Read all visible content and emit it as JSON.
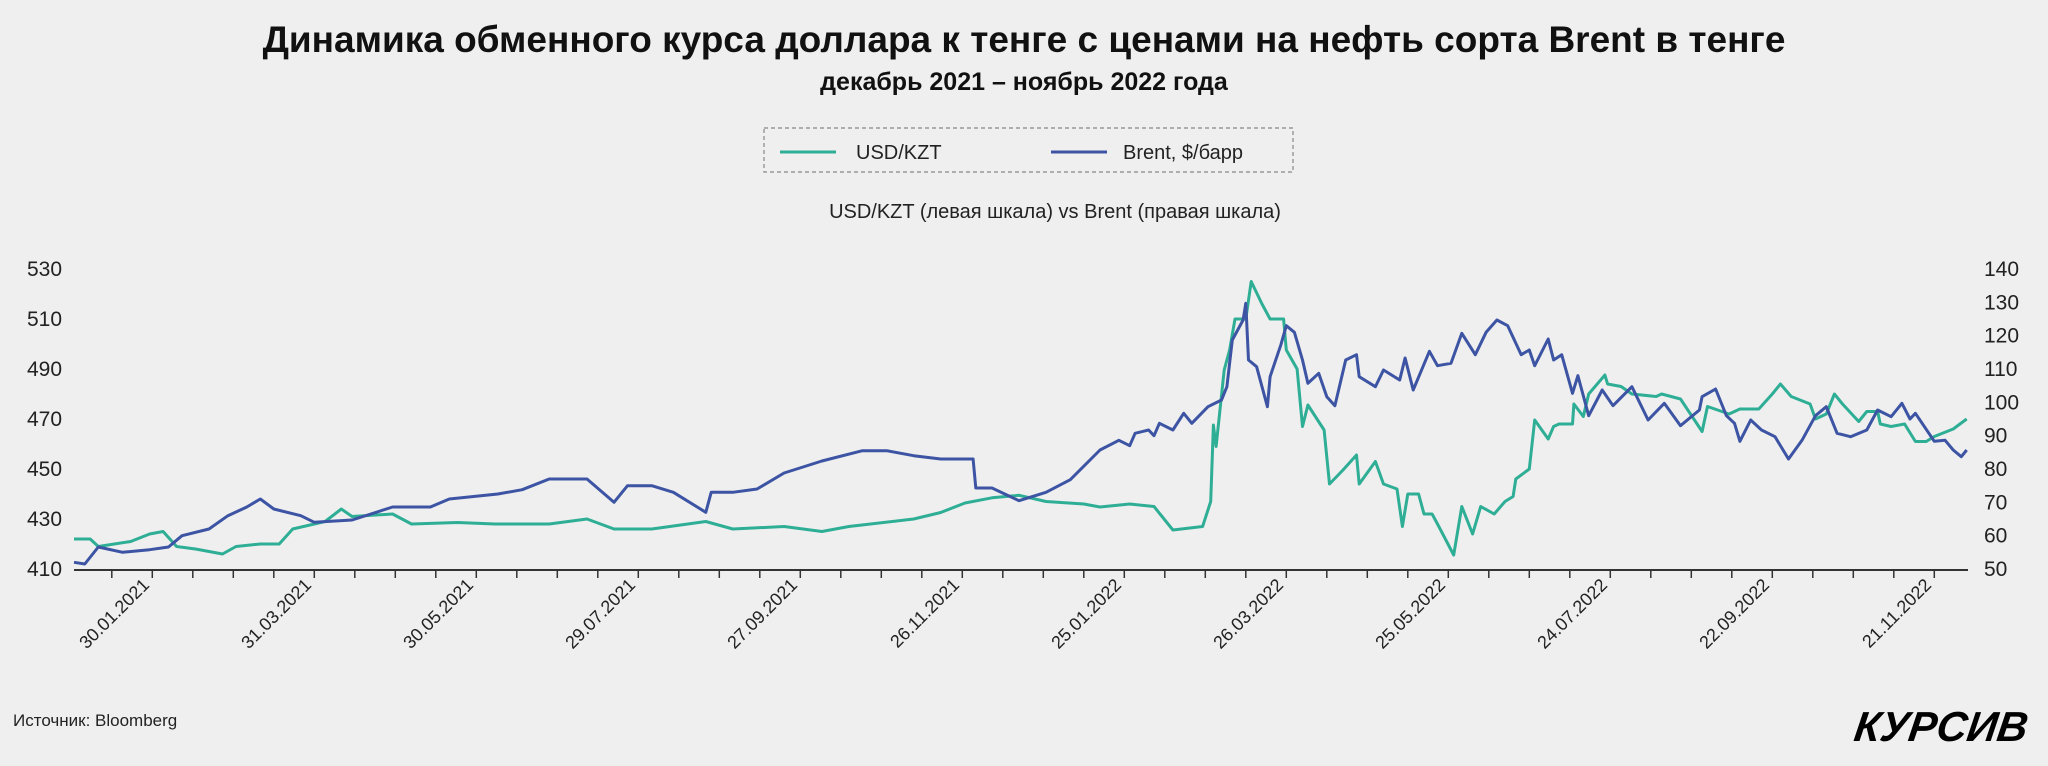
{
  "title": "Динамика обменного курса доллара к тенге с ценами на нефть сорта Brent в тенге",
  "subtitle": "декабрь 2021 – ноябрь 2022 года",
  "source": "Источник: Bloomberg",
  "logo": "КУРСИВ",
  "colors": {
    "usd": "#2fae96",
    "brent": "#3c54a3",
    "background": "#efefef"
  },
  "chart_data": {
    "type": "line",
    "caption": "USD/KZT (левая шкала) vs Brent (правая шкала)",
    "legend": [
      "USD/KZT",
      "Brent, $/барр"
    ],
    "legend_placement": "top-center",
    "x_origin": "2021-01-01",
    "x_unit": "days",
    "x_ticks": [
      {
        "day": 29,
        "label": "30.01.2021"
      },
      {
        "day": 89,
        "label": "31.03.2021"
      },
      {
        "day": 149,
        "label": "30.05.2021"
      },
      {
        "day": 209,
        "label": "29.07.2021"
      },
      {
        "day": 269,
        "label": "27.09.2021"
      },
      {
        "day": 329,
        "label": "26.11.2021"
      },
      {
        "day": 389,
        "label": "25.01.2022"
      },
      {
        "day": 449,
        "label": "26.03.2022"
      },
      {
        "day": 509,
        "label": "25.05.2022"
      },
      {
        "day": 569,
        "label": "24.07.2022"
      },
      {
        "day": 629,
        "label": "22.09.2022"
      },
      {
        "day": 689,
        "label": "21.11.2022"
      }
    ],
    "xlim": [
      0,
      701
    ],
    "y_left": {
      "label": "USD/KZT",
      "ylim": [
        410,
        530
      ],
      "ticks": [
        "530",
        "510",
        "490",
        "470",
        "450",
        "430",
        "410"
      ]
    },
    "y_right": {
      "label": "Brent, $/барр",
      "ylim": [
        50,
        140
      ],
      "ticks": [
        "140",
        "130",
        "120",
        "110",
        "100",
        "90",
        "80",
        "70",
        "60",
        "50"
      ]
    },
    "grid": false,
    "series": [
      {
        "name": "USD/KZT",
        "axis": "left",
        "points": [
          [
            0,
            422
          ],
          [
            6,
            422
          ],
          [
            9,
            419
          ],
          [
            21,
            421
          ],
          [
            28,
            424
          ],
          [
            33,
            425
          ],
          [
            38,
            419
          ],
          [
            45,
            418
          ],
          [
            55,
            416
          ],
          [
            60,
            419
          ],
          [
            69,
            420
          ],
          [
            76,
            420
          ],
          [
            81,
            426
          ],
          [
            93,
            429
          ],
          [
            99,
            434
          ],
          [
            103,
            431
          ],
          [
            118,
            432
          ],
          [
            125,
            428
          ],
          [
            142,
            428.6
          ],
          [
            156,
            428
          ],
          [
            176,
            428
          ],
          [
            190,
            430
          ],
          [
            200,
            426
          ],
          [
            214,
            426
          ],
          [
            234,
            429
          ],
          [
            244,
            426
          ],
          [
            263,
            427
          ],
          [
            277,
            425
          ],
          [
            287,
            427
          ],
          [
            311,
            430
          ],
          [
            321,
            432.6
          ],
          [
            330,
            436.4
          ],
          [
            340,
            438.5
          ],
          [
            350,
            439.5
          ],
          [
            360,
            437
          ],
          [
            374,
            436
          ],
          [
            380,
            434.8
          ],
          [
            391,
            436
          ],
          [
            400,
            435
          ],
          [
            407,
            425.6
          ],
          [
            418,
            427
          ],
          [
            421,
            437
          ],
          [
            422,
            467.6
          ],
          [
            423,
            459
          ],
          [
            426,
            489.6
          ],
          [
            428,
            497.6
          ],
          [
            430,
            510
          ],
          [
            434,
            510
          ],
          [
            436,
            525
          ],
          [
            440,
            516
          ],
          [
            443,
            510
          ],
          [
            448,
            510
          ],
          [
            449,
            497.6
          ],
          [
            453,
            490
          ],
          [
            455,
            467
          ],
          [
            457,
            475.6
          ],
          [
            463,
            465.6
          ],
          [
            465,
            444
          ],
          [
            470,
            449.6
          ],
          [
            475,
            455.6
          ],
          [
            476,
            444
          ],
          [
            482,
            453
          ],
          [
            485,
            444
          ],
          [
            490,
            442
          ],
          [
            492,
            427
          ],
          [
            494,
            440
          ],
          [
            498,
            440
          ],
          [
            500,
            432
          ],
          [
            503,
            432
          ],
          [
            505,
            428
          ],
          [
            511,
            415.6
          ],
          [
            514,
            435
          ],
          [
            518,
            424
          ],
          [
            521,
            435
          ],
          [
            526,
            432
          ],
          [
            530,
            437
          ],
          [
            533,
            439
          ],
          [
            534,
            446
          ],
          [
            539,
            450
          ],
          [
            541,
            469.6
          ],
          [
            546,
            462
          ],
          [
            548,
            467
          ],
          [
            550,
            468
          ],
          [
            555,
            468
          ],
          [
            555.5,
            476
          ],
          [
            559,
            471
          ],
          [
            561,
            480
          ],
          [
            567,
            487.6
          ],
          [
            568,
            484
          ],
          [
            573,
            483
          ],
          [
            577,
            480
          ],
          [
            586,
            479
          ],
          [
            588,
            480
          ],
          [
            595,
            478
          ],
          [
            603,
            465
          ],
          [
            605,
            475
          ],
          [
            613,
            472
          ],
          [
            617,
            474
          ],
          [
            624,
            474
          ],
          [
            629,
            480
          ],
          [
            632,
            484
          ],
          [
            636,
            479
          ],
          [
            643,
            476
          ],
          [
            645,
            470
          ],
          [
            649,
            472
          ],
          [
            652,
            480
          ],
          [
            655,
            476
          ],
          [
            661,
            469
          ],
          [
            664,
            473
          ],
          [
            668,
            473
          ],
          [
            669,
            468
          ],
          [
            673,
            467
          ],
          [
            678,
            468
          ],
          [
            682,
            461
          ],
          [
            686,
            461
          ],
          [
            689,
            463
          ],
          [
            696,
            466
          ],
          [
            701,
            470
          ]
        ]
      },
      {
        "name": "Brent, $/барр",
        "axis": "right",
        "points": [
          [
            0,
            52
          ],
          [
            4,
            51.5
          ],
          [
            9,
            56.6
          ],
          [
            18,
            55
          ],
          [
            28,
            55.8
          ],
          [
            35,
            56.6
          ],
          [
            40,
            60
          ],
          [
            50,
            62
          ],
          [
            57,
            66
          ],
          [
            64,
            68.6
          ],
          [
            69,
            71
          ],
          [
            74,
            68
          ],
          [
            84,
            66
          ],
          [
            89,
            64
          ],
          [
            103,
            64.7
          ],
          [
            118,
            68.6
          ],
          [
            132,
            68.6
          ],
          [
            139,
            71
          ],
          [
            157,
            72.5
          ],
          [
            166,
            73.8
          ],
          [
            176,
            77
          ],
          [
            190,
            77
          ],
          [
            200,
            70
          ],
          [
            205,
            75
          ],
          [
            214,
            75
          ],
          [
            222,
            73
          ],
          [
            234,
            67
          ],
          [
            236,
            73
          ],
          [
            244,
            73
          ],
          [
            253,
            74
          ],
          [
            263,
            78.8
          ],
          [
            277,
            82.4
          ],
          [
            292,
            85.5
          ],
          [
            301,
            85.5
          ],
          [
            311,
            84
          ],
          [
            321,
            83
          ],
          [
            333,
            83
          ],
          [
            334,
            74.3
          ],
          [
            340,
            74.3
          ],
          [
            350,
            70.5
          ],
          [
            360,
            73
          ],
          [
            369,
            76.8
          ],
          [
            380,
            85.7
          ],
          [
            387,
            88.6
          ],
          [
            391,
            87
          ],
          [
            393,
            90.7
          ],
          [
            398,
            91.7
          ],
          [
            400,
            90
          ],
          [
            402,
            93.7
          ],
          [
            407,
            91.7
          ],
          [
            411,
            96.7
          ],
          [
            414,
            93.7
          ],
          [
            420,
            98.7
          ],
          [
            425,
            100.7
          ],
          [
            427,
            104.7
          ],
          [
            429,
            118.7
          ],
          [
            433,
            124.7
          ],
          [
            434,
            129.7
          ],
          [
            435,
            112.7
          ],
          [
            438,
            110.7
          ],
          [
            442,
            98.7
          ],
          [
            443,
            107.7
          ],
          [
            447,
            117.3
          ],
          [
            449,
            123
          ],
          [
            452,
            121
          ],
          [
            455,
            112.7
          ],
          [
            457,
            105.7
          ],
          [
            461,
            108.7
          ],
          [
            464,
            101.7
          ],
          [
            467,
            99
          ],
          [
            471,
            112.7
          ],
          [
            475,
            114.3
          ],
          [
            476,
            107.7
          ],
          [
            482,
            104.7
          ],
          [
            485,
            109.7
          ],
          [
            491,
            106.7
          ],
          [
            493,
            113.3
          ],
          [
            496,
            103.7
          ],
          [
            502,
            115.3
          ],
          [
            505,
            111
          ],
          [
            510,
            111.7
          ],
          [
            514,
            120.7
          ],
          [
            519,
            114.3
          ],
          [
            523,
            121
          ],
          [
            527,
            124.7
          ],
          [
            531,
            123
          ],
          [
            536,
            114.3
          ],
          [
            539,
            115.7
          ],
          [
            541,
            111
          ],
          [
            546,
            119
          ],
          [
            548,
            112.7
          ],
          [
            551,
            114.3
          ],
          [
            555,
            102.7
          ],
          [
            557,
            108
          ],
          [
            561,
            96
          ],
          [
            566,
            103.7
          ],
          [
            570,
            99
          ],
          [
            577,
            104.7
          ],
          [
            583,
            94.7
          ],
          [
            589,
            99.7
          ],
          [
            595,
            93
          ],
          [
            602,
            97.7
          ],
          [
            603,
            101.7
          ],
          [
            608,
            104
          ],
          [
            612,
            96
          ],
          [
            615,
            93.7
          ],
          [
            617,
            88.3
          ],
          [
            621,
            94.7
          ],
          [
            625,
            91.7
          ],
          [
            630,
            89.7
          ],
          [
            635,
            83
          ],
          [
            640,
            88.6
          ],
          [
            645,
            96
          ],
          [
            649,
            98.7
          ],
          [
            653,
            90.7
          ],
          [
            658,
            89.7
          ],
          [
            664,
            91.7
          ],
          [
            668,
            97.7
          ],
          [
            673,
            95.7
          ],
          [
            677,
            99.7
          ],
          [
            680,
            95
          ],
          [
            682,
            96.7
          ],
          [
            689,
            88.3
          ],
          [
            693,
            88.6
          ],
          [
            696,
            85.7
          ],
          [
            699,
            83.7
          ],
          [
            701,
            85.7
          ]
        ]
      }
    ]
  }
}
